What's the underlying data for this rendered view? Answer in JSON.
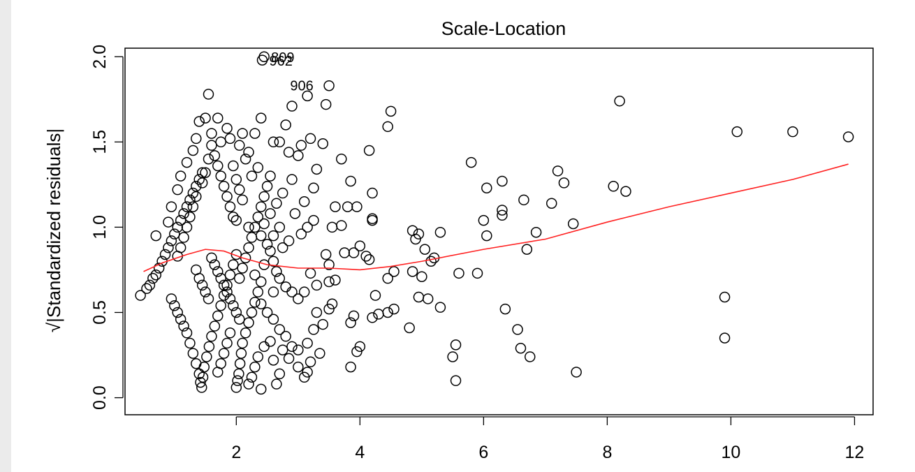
{
  "chart_data": {
    "type": "scatter",
    "title": "Scale-Location",
    "xlabel": "",
    "ylabel": "√|Standardized residuals|",
    "xlim": [
      0.2,
      12.3
    ],
    "ylim": [
      -0.1,
      2.05
    ],
    "xticks": [
      "2",
      "4",
      "6",
      "8",
      "10",
      "12"
    ],
    "yticks": [
      "0.0",
      "0.5",
      "1.0",
      "1.5",
      "2.0"
    ],
    "smooth_color": "#ff2020",
    "labeled_points": [
      {
        "label": "809",
        "x": 2.45,
        "y": 2.0
      },
      {
        "label": "962",
        "x": 2.42,
        "y": 1.98
      },
      {
        "label": "906",
        "x": 3.15,
        "y": 1.77
      }
    ],
    "points": [
      [
        0.45,
        0.6
      ],
      [
        0.55,
        0.64
      ],
      [
        0.6,
        0.66
      ],
      [
        0.65,
        0.7
      ],
      [
        0.7,
        0.72
      ],
      [
        0.75,
        0.76
      ],
      [
        0.8,
        0.8
      ],
      [
        0.85,
        0.84
      ],
      [
        0.9,
        0.88
      ],
      [
        0.95,
        0.92
      ],
      [
        1.0,
        0.96
      ],
      [
        1.05,
        1.0
      ],
      [
        1.1,
        1.04
      ],
      [
        1.15,
        1.08
      ],
      [
        1.2,
        1.12
      ],
      [
        1.25,
        1.16
      ],
      [
        1.3,
        1.2
      ],
      [
        1.35,
        1.24
      ],
      [
        1.4,
        1.28
      ],
      [
        1.45,
        1.32
      ],
      [
        0.7,
        0.95
      ],
      [
        0.9,
        1.03
      ],
      [
        0.95,
        1.12
      ],
      [
        1.05,
        1.22
      ],
      [
        1.1,
        1.3
      ],
      [
        1.2,
        1.38
      ],
      [
        1.3,
        1.45
      ],
      [
        1.35,
        1.52
      ],
      [
        1.4,
        1.62
      ],
      [
        1.5,
        1.64
      ],
      [
        1.55,
        1.78
      ],
      [
        1.6,
        1.55
      ],
      [
        1.6,
        1.48
      ],
      [
        1.65,
        1.42
      ],
      [
        1.7,
        1.36
      ],
      [
        1.75,
        1.3
      ],
      [
        1.8,
        1.24
      ],
      [
        1.85,
        1.18
      ],
      [
        1.9,
        1.12
      ],
      [
        1.95,
        1.06
      ],
      [
        1.55,
        1.4
      ],
      [
        1.5,
        1.32
      ],
      [
        1.45,
        1.26
      ],
      [
        1.35,
        1.18
      ],
      [
        1.3,
        1.12
      ],
      [
        1.25,
        1.06
      ],
      [
        1.2,
        1.0
      ],
      [
        1.15,
        0.94
      ],
      [
        1.1,
        0.88
      ],
      [
        1.05,
        0.83
      ],
      [
        0.95,
        0.58
      ],
      [
        1.0,
        0.54
      ],
      [
        1.05,
        0.5
      ],
      [
        1.1,
        0.46
      ],
      [
        1.15,
        0.42
      ],
      [
        1.2,
        0.38
      ],
      [
        1.25,
        0.32
      ],
      [
        1.3,
        0.26
      ],
      [
        1.35,
        0.2
      ],
      [
        1.4,
        0.14
      ],
      [
        1.42,
        0.09
      ],
      [
        1.44,
        0.06
      ],
      [
        1.46,
        0.12
      ],
      [
        1.48,
        0.18
      ],
      [
        1.52,
        0.24
      ],
      [
        1.56,
        0.3
      ],
      [
        1.6,
        0.36
      ],
      [
        1.65,
        0.42
      ],
      [
        1.7,
        0.48
      ],
      [
        1.75,
        0.54
      ],
      [
        1.8,
        0.6
      ],
      [
        1.85,
        0.66
      ],
      [
        1.9,
        0.72
      ],
      [
        1.95,
        0.78
      ],
      [
        2.0,
        0.84
      ],
      [
        1.35,
        0.75
      ],
      [
        1.4,
        0.7
      ],
      [
        1.45,
        0.66
      ],
      [
        1.5,
        0.62
      ],
      [
        1.55,
        0.58
      ],
      [
        1.6,
        0.82
      ],
      [
        1.65,
        0.78
      ],
      [
        1.7,
        0.74
      ],
      [
        1.75,
        0.7
      ],
      [
        1.8,
        0.66
      ],
      [
        1.85,
        0.62
      ],
      [
        1.9,
        0.58
      ],
      [
        1.95,
        0.54
      ],
      [
        2.0,
        0.5
      ],
      [
        2.05,
        0.46
      ],
      [
        1.7,
        0.15
      ],
      [
        1.75,
        0.2
      ],
      [
        1.8,
        0.26
      ],
      [
        1.85,
        0.32
      ],
      [
        1.9,
        0.38
      ],
      [
        2.0,
        0.06
      ],
      [
        2.02,
        0.1
      ],
      [
        2.04,
        0.14
      ],
      [
        2.06,
        0.2
      ],
      [
        2.08,
        0.26
      ],
      [
        2.1,
        0.32
      ],
      [
        2.15,
        0.38
      ],
      [
        2.2,
        0.44
      ],
      [
        2.25,
        0.5
      ],
      [
        2.3,
        0.56
      ],
      [
        2.35,
        0.62
      ],
      [
        2.05,
        0.7
      ],
      [
        2.1,
        0.76
      ],
      [
        2.15,
        0.82
      ],
      [
        2.2,
        0.88
      ],
      [
        2.25,
        0.94
      ],
      [
        2.3,
        1.0
      ],
      [
        2.35,
        1.06
      ],
      [
        2.4,
        1.12
      ],
      [
        2.45,
        1.18
      ],
      [
        2.5,
        1.24
      ],
      [
        2.55,
        1.3
      ],
      [
        2.0,
        1.28
      ],
      [
        2.05,
        1.22
      ],
      [
        2.1,
        1.16
      ],
      [
        1.9,
        1.52
      ],
      [
        2.05,
        1.48
      ],
      [
        2.1,
        1.55
      ],
      [
        2.3,
        1.55
      ],
      [
        2.4,
        1.64
      ],
      [
        2.2,
        1.44
      ],
      [
        2.25,
        1.3
      ],
      [
        2.6,
        1.5
      ],
      [
        2.7,
        1.5
      ],
      [
        2.8,
        1.6
      ],
      [
        2.9,
        1.71
      ],
      [
        2.85,
        1.44
      ],
      [
        3.0,
        1.42
      ],
      [
        3.05,
        1.48
      ],
      [
        3.2,
        1.52
      ],
      [
        3.4,
        1.49
      ],
      [
        3.3,
        1.34
      ],
      [
        3.45,
        1.72
      ],
      [
        3.5,
        1.83
      ],
      [
        3.7,
        1.4
      ],
      [
        4.15,
        1.45
      ],
      [
        4.45,
        1.59
      ],
      [
        4.5,
        1.68
      ],
      [
        4.2,
        1.2
      ],
      [
        3.85,
        1.27
      ],
      [
        3.8,
        1.12
      ],
      [
        3.95,
        1.12
      ],
      [
        3.6,
        1.12
      ],
      [
        3.7,
        1.01
      ],
      [
        3.55,
        1.0
      ],
      [
        4.2,
        1.04
      ],
      [
        4.2,
        1.05
      ],
      [
        4.0,
        0.89
      ],
      [
        4.1,
        0.83
      ],
      [
        4.15,
        0.81
      ],
      [
        3.9,
        0.85
      ],
      [
        3.75,
        0.85
      ],
      [
        3.5,
        0.78
      ],
      [
        3.45,
        0.84
      ],
      [
        3.6,
        0.69
      ],
      [
        3.5,
        0.68
      ],
      [
        3.3,
        0.66
      ],
      [
        3.2,
        0.73
      ],
      [
        3.1,
        0.62
      ],
      [
        3.0,
        0.58
      ],
      [
        2.9,
        0.62
      ],
      [
        2.8,
        0.65
      ],
      [
        2.7,
        0.7
      ],
      [
        2.65,
        0.74
      ],
      [
        2.6,
        0.8
      ],
      [
        2.55,
        0.86
      ],
      [
        2.75,
        0.88
      ],
      [
        2.85,
        0.92
      ],
      [
        3.05,
        0.96
      ],
      [
        3.15,
        1.0
      ],
      [
        3.25,
        1.04
      ],
      [
        2.95,
        1.08
      ],
      [
        2.7,
        1.0
      ],
      [
        2.6,
        0.95
      ],
      [
        2.5,
        0.9
      ],
      [
        2.4,
        0.95
      ],
      [
        2.45,
        1.02
      ],
      [
        2.55,
        1.08
      ],
      [
        2.65,
        1.14
      ],
      [
        2.75,
        1.2
      ],
      [
        2.9,
        1.28
      ],
      [
        3.1,
        1.15
      ],
      [
        3.25,
        1.23
      ],
      [
        2.35,
        1.35
      ],
      [
        2.15,
        1.4
      ],
      [
        3.3,
        0.5
      ],
      [
        3.4,
        0.43
      ],
      [
        3.5,
        0.52
      ],
      [
        3.55,
        0.55
      ],
      [
        3.25,
        0.4
      ],
      [
        3.15,
        0.32
      ],
      [
        3.2,
        0.21
      ],
      [
        3.1,
        0.12
      ],
      [
        3.15,
        0.15
      ],
      [
        3.35,
        0.26
      ],
      [
        3.0,
        0.28
      ],
      [
        2.9,
        0.3
      ],
      [
        2.8,
        0.36
      ],
      [
        2.7,
        0.4
      ],
      [
        2.6,
        0.46
      ],
      [
        2.5,
        0.5
      ],
      [
        2.4,
        0.55
      ],
      [
        2.55,
        0.33
      ],
      [
        2.45,
        0.3
      ],
      [
        2.35,
        0.24
      ],
      [
        2.3,
        0.18
      ],
      [
        2.25,
        0.12
      ],
      [
        2.2,
        0.08
      ],
      [
        2.4,
        0.05
      ],
      [
        2.65,
        0.08
      ],
      [
        2.7,
        0.14
      ],
      [
        2.85,
        0.23
      ],
      [
        3.0,
        0.18
      ],
      [
        2.75,
        0.28
      ],
      [
        2.6,
        0.22
      ],
      [
        3.85,
        0.44
      ],
      [
        3.9,
        0.48
      ],
      [
        3.85,
        0.18
      ],
      [
        3.95,
        0.27
      ],
      [
        4.0,
        0.3
      ],
      [
        4.2,
        0.47
      ],
      [
        4.3,
        0.49
      ],
      [
        4.25,
        0.6
      ],
      [
        4.45,
        0.7
      ],
      [
        4.55,
        0.74
      ],
      [
        4.45,
        0.5
      ],
      [
        4.55,
        0.52
      ],
      [
        4.8,
        0.41
      ],
      [
        4.85,
        0.98
      ],
      [
        4.9,
        0.93
      ],
      [
        4.95,
        0.96
      ],
      [
        5.05,
        0.87
      ],
      [
        5.15,
        0.8
      ],
      [
        5.1,
        0.58
      ],
      [
        4.95,
        0.59
      ],
      [
        4.85,
        0.74
      ],
      [
        5.0,
        0.71
      ],
      [
        5.2,
        0.82
      ],
      [
        5.3,
        0.97
      ],
      [
        5.3,
        0.53
      ],
      [
        5.5,
        0.24
      ],
      [
        5.55,
        0.31
      ],
      [
        5.55,
        0.1
      ],
      [
        5.6,
        0.73
      ],
      [
        5.8,
        1.38
      ],
      [
        5.9,
        0.73
      ],
      [
        6.0,
        1.04
      ],
      [
        6.05,
        0.95
      ],
      [
        6.05,
        1.23
      ],
      [
        6.3,
        1.27
      ],
      [
        6.3,
        1.1
      ],
      [
        6.3,
        1.07
      ],
      [
        6.35,
        0.52
      ],
      [
        6.55,
        0.4
      ],
      [
        6.6,
        0.29
      ],
      [
        6.65,
        1.16
      ],
      [
        6.7,
        0.87
      ],
      [
        6.75,
        0.24
      ],
      [
        6.85,
        0.97
      ],
      [
        7.1,
        1.14
      ],
      [
        7.2,
        1.33
      ],
      [
        7.3,
        1.26
      ],
      [
        7.45,
        1.02
      ],
      [
        7.5,
        0.15
      ],
      [
        8.1,
        1.24
      ],
      [
        8.2,
        1.74
      ],
      [
        8.3,
        1.21
      ],
      [
        9.9,
        0.59
      ],
      [
        9.9,
        0.35
      ],
      [
        10.1,
        1.56
      ],
      [
        11.0,
        1.56
      ],
      [
        11.9,
        1.53
      ],
      [
        2.42,
        1.98
      ],
      [
        2.45,
        2.0
      ],
      [
        3.15,
        1.77
      ],
      [
        1.75,
        1.5
      ],
      [
        1.85,
        1.58
      ],
      [
        1.7,
        1.64
      ],
      [
        1.95,
        1.36
      ],
      [
        2.0,
        1.04
      ],
      [
        2.2,
        1.0
      ],
      [
        2.3,
        0.72
      ],
      [
        2.4,
        0.68
      ],
      [
        2.45,
        0.78
      ],
      [
        2.6,
        0.62
      ]
    ],
    "smooth": [
      [
        0.5,
        0.74
      ],
      [
        0.8,
        0.79
      ],
      [
        1.2,
        0.84
      ],
      [
        1.5,
        0.87
      ],
      [
        1.8,
        0.86
      ],
      [
        2.1,
        0.82
      ],
      [
        2.5,
        0.78
      ],
      [
        3.0,
        0.76
      ],
      [
        3.5,
        0.76
      ],
      [
        4.0,
        0.75
      ],
      [
        4.5,
        0.77
      ],
      [
        5.0,
        0.8
      ],
      [
        6.0,
        0.87
      ],
      [
        7.0,
        0.93
      ],
      [
        8.0,
        1.03
      ],
      [
        9.0,
        1.12
      ],
      [
        10.0,
        1.2
      ],
      [
        11.0,
        1.28
      ],
      [
        11.9,
        1.37
      ]
    ]
  }
}
